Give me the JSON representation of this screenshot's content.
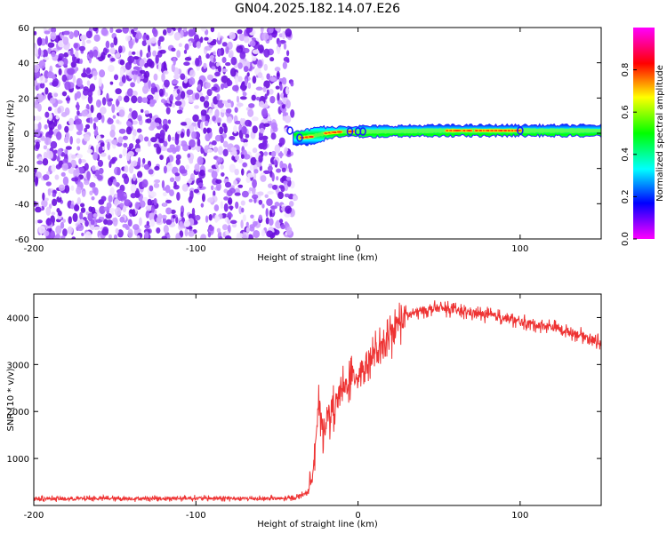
{
  "title": "GN04.2025.182.14.07.E26",
  "chart_data": [
    {
      "type": "heatmap",
      "title": "GN04.2025.182.14.07.E26",
      "xlabel": "Height of straight line (km)",
      "ylabel": "Frequency (Hz)",
      "xlim": [
        -200,
        150
      ],
      "ylim": [
        -60,
        60
      ],
      "x_ticks": [
        -200,
        -100,
        0,
        100
      ],
      "y_ticks": [
        -60,
        -40,
        -20,
        0,
        20,
        40,
        60
      ],
      "noise_region_x": [
        -200,
        -40
      ],
      "signal_band": {
        "x_start": -40,
        "x_end": 150,
        "centerline": [
          {
            "x": -40,
            "y": -3
          },
          {
            "x": -30,
            "y": -2
          },
          {
            "x": -20,
            "y": 0
          },
          {
            "x": -10,
            "y": 1
          },
          {
            "x": 0,
            "y": 1
          },
          {
            "x": 10,
            "y": 1
          },
          {
            "x": 50,
            "y": 1.5
          },
          {
            "x": 100,
            "y": 1.5
          },
          {
            "x": 150,
            "y": 1.5
          }
        ],
        "peak_amplitude_x": [
          [
            -35,
            -28
          ],
          [
            -20,
            -12
          ],
          [
            -8,
            -3
          ],
          [
            55,
            100
          ]
        ]
      },
      "colorbar": {
        "label": "Normalized spectral amplitude",
        "range": [
          0,
          1
        ],
        "ticks": [
          "0.0",
          "0.2",
          "0.4",
          "0.6",
          "0.8"
        ],
        "colors": [
          "#ff00ff",
          "#0000ff",
          "#00ffff",
          "#00ff00",
          "#ffff00",
          "#ff0000",
          "#ff00ff"
        ]
      },
      "grid": false
    },
    {
      "type": "line",
      "xlabel": "Height of straight line (km)",
      "ylabel": "SNR (10 * v/v)",
      "xlim": [
        -200,
        150
      ],
      "ylim": [
        0,
        4500
      ],
      "x_ticks": [
        -200,
        -100,
        0,
        100
      ],
      "y_ticks": [
        1000,
        2000,
        3000,
        4000
      ],
      "color": "#ee3333",
      "series": [
        {
          "x": [
            -200,
            -180,
            -160,
            -140,
            -120,
            -100,
            -80,
            -60,
            -40,
            -30,
            -28,
            -26,
            -24,
            -22,
            -20,
            -15,
            -10,
            -5,
            0,
            5,
            10,
            15,
            20,
            25,
            30,
            40,
            50,
            60,
            70,
            80,
            90,
            100,
            110,
            120,
            130,
            140,
            150
          ],
          "y": [
            150,
            140,
            150,
            145,
            150,
            155,
            150,
            145,
            150,
            300,
            800,
            1500,
            2100,
            1600,
            1800,
            2100,
            2400,
            2700,
            2800,
            3000,
            3200,
            3300,
            3600,
            3900,
            4050,
            4150,
            4200,
            4150,
            4100,
            4050,
            4000,
            3900,
            3850,
            3800,
            3700,
            3600,
            3450
          ]
        }
      ],
      "grid": false
    }
  ]
}
